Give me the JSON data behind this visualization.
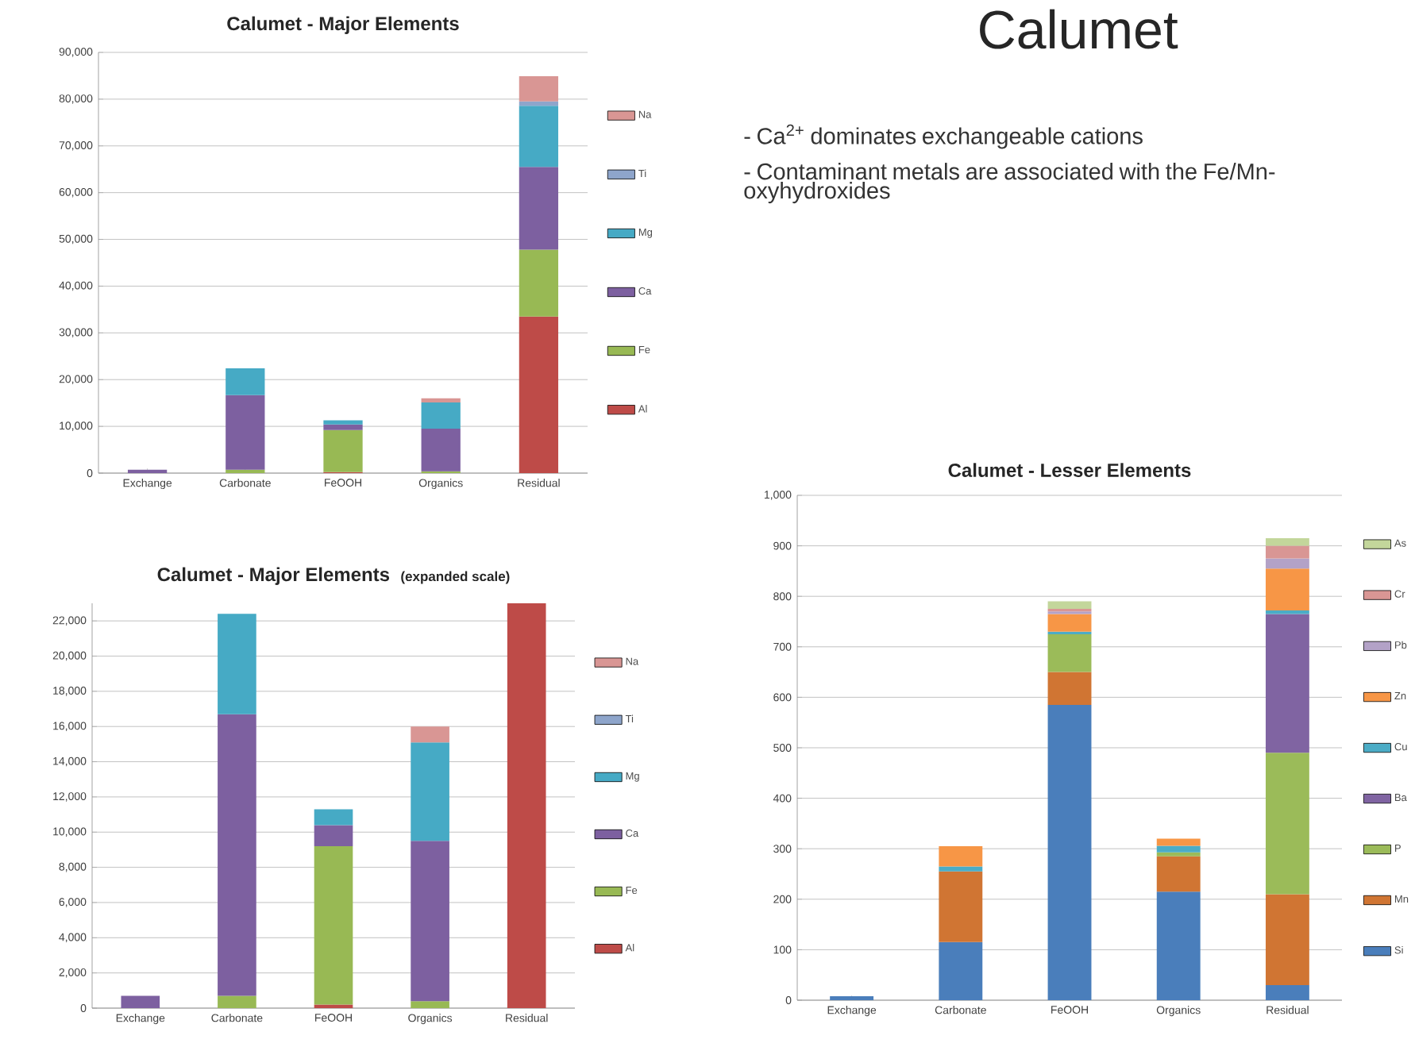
{
  "chart_data": [
    {
      "type": "bar",
      "title": "Calumet - Major Elements",
      "stacked": true,
      "grid": "y",
      "legend": "right",
      "categories": [
        "Exchange",
        "Carbonate",
        "FeOOH",
        "Organics",
        "Residual"
      ],
      "ylim": [
        0,
        90000
      ],
      "yticks": [
        0,
        {
          "value": 10000,
          "label": "10,000"
        },
        {
          "value": 20000,
          "label": "20,000"
        },
        {
          "value": 30000,
          "label": "30,000"
        },
        {
          "value": 40000,
          "label": "40,000"
        },
        {
          "value": 50000,
          "label": "50,000"
        },
        {
          "value": 60000,
          "label": "60,000"
        },
        {
          "value": 70000,
          "label": "70,000"
        },
        {
          "value": 80000,
          "label": "80,000"
        },
        {
          "value": 90000,
          "label": "90,000"
        }
      ],
      "series": [
        {
          "name": "Al",
          "color": "#be4b48",
          "values": [
            0,
            0,
            200,
            0,
            33500
          ]
        },
        {
          "name": "Fe",
          "color": "#98b954",
          "values": [
            0,
            700,
            9000,
            400,
            14300
          ]
        },
        {
          "name": "Ca",
          "color": "#7d60a0",
          "values": [
            700,
            16000,
            1200,
            9100,
            17700
          ]
        },
        {
          "name": "Mg",
          "color": "#46aac5",
          "values": [
            0,
            5700,
            900,
            5600,
            13100
          ]
        },
        {
          "name": "Ti",
          "color": "#8ea5cb",
          "values": [
            0,
            0,
            0,
            0,
            900
          ]
        },
        {
          "name": "Na",
          "color": "#d99694",
          "values": [
            0,
            0,
            0,
            900,
            5400
          ]
        }
      ]
    },
    {
      "type": "other",
      "title": "Calumet",
      "annotations": [
        "- Ca$^{2+}$ dominates exchangeable cations",
        "- Contaminant metals are associated with the Fe/Mn-oxyhydroxides"
      ]
    },
    {
      "type": "bar",
      "title": "Calumet - Major Elements",
      "subtitle": "(expanded scale)",
      "stacked": true,
      "grid": "y",
      "legend": "right",
      "categories": [
        "Exchange",
        "Carbonate",
        "FeOOH",
        "Organics",
        "Residual"
      ],
      "ylim": [
        0,
        23000
      ],
      "yticks": [
        0,
        {
          "value": 2000,
          "label": "2,000"
        },
        {
          "value": 4000,
          "label": "4,000"
        },
        {
          "value": 6000,
          "label": "6,000"
        },
        {
          "value": 8000,
          "label": "8,000"
        },
        {
          "value": 10000,
          "label": "10,000"
        },
        {
          "value": 12000,
          "label": "12,000"
        },
        {
          "value": 14000,
          "label": "14,000"
        },
        {
          "value": 16000,
          "label": "16,000"
        },
        {
          "value": 18000,
          "label": "18,000"
        },
        {
          "value": 20000,
          "label": "20,000"
        },
        {
          "value": 22000,
          "label": "22,000"
        }
      ],
      "series": [
        {
          "name": "Al",
          "color": "#be4b48",
          "values": [
            0,
            0,
            200,
            0,
            23000
          ]
        },
        {
          "name": "Fe",
          "color": "#98b954",
          "values": [
            0,
            700,
            9000,
            400,
            null
          ]
        },
        {
          "name": "Ca",
          "color": "#7d60a0",
          "values": [
            700,
            16000,
            1200,
            9100,
            null
          ]
        },
        {
          "name": "Mg",
          "color": "#46aac5",
          "values": [
            0,
            5700,
            900,
            5600,
            null
          ]
        },
        {
          "name": "Ti",
          "color": "#8ea5cb",
          "values": [
            0,
            0,
            0,
            0,
            null
          ]
        },
        {
          "name": "Na",
          "color": "#d99694",
          "values": [
            0,
            0,
            0,
            900,
            null
          ]
        }
      ]
    },
    {
      "type": "bar",
      "title": "Calumet - Lesser Elements",
      "stacked": true,
      "grid": "y",
      "legend": "right",
      "categories": [
        "Exchange",
        "Carbonate",
        "FeOOH",
        "Organics",
        "Residual"
      ],
      "ylim": [
        0,
        1000
      ],
      "yticks": [
        0,
        100,
        200,
        300,
        400,
        500,
        600,
        700,
        800,
        900,
        {
          "value": 1000,
          "label": "1,000"
        }
      ],
      "series": [
        {
          "name": "Si",
          "color": "#4a7ebb",
          "values": [
            8,
            115,
            585,
            215,
            30
          ]
        },
        {
          "name": "Mn",
          "color": "#d07533",
          "values": [
            0,
            140,
            65,
            70,
            180
          ]
        },
        {
          "name": "P",
          "color": "#9bbb59",
          "values": [
            0,
            0,
            75,
            8,
            280
          ]
        },
        {
          "name": "Ba",
          "color": "#8064a2",
          "values": [
            0,
            0,
            0,
            0,
            275
          ]
        },
        {
          "name": "Cu",
          "color": "#4bacc6",
          "values": [
            0,
            10,
            5,
            13,
            7
          ]
        },
        {
          "name": "Zn",
          "color": "#f79646",
          "values": [
            0,
            40,
            35,
            14,
            83
          ]
        },
        {
          "name": "Pb",
          "color": "#b3a2c7",
          "values": [
            0,
            0,
            5,
            0,
            20
          ]
        },
        {
          "name": "Cr",
          "color": "#d99694",
          "values": [
            0,
            0,
            5,
            0,
            25
          ]
        },
        {
          "name": "As",
          "color": "#c3d69b",
          "values": [
            0,
            0,
            15,
            0,
            15
          ]
        }
      ]
    }
  ]
}
